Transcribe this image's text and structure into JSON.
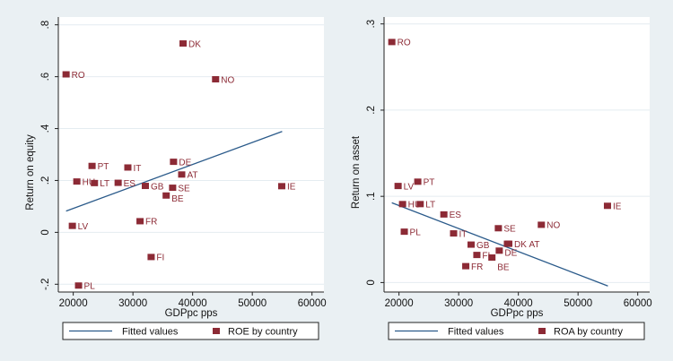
{
  "colors": {
    "background": "#eaf0f3",
    "plot": "#ffffff",
    "grid": "#e4ecf1",
    "marker": "#8c2a35",
    "fit": "#2a5a8a"
  },
  "chart_data": [
    {
      "type": "scatter",
      "xlabel": "GDPpc pps",
      "ylabel": "Return on equity",
      "xlim": [
        17500,
        62000
      ],
      "ylim": [
        -0.23,
        0.83
      ],
      "xticks": [
        20000,
        30000,
        40000,
        50000,
        60000
      ],
      "xtick_labels": [
        "20000",
        "30000",
        "40000",
        "50000",
        "60000"
      ],
      "yticks": [
        -0.2,
        0,
        0.2,
        0.4,
        0.6,
        0.8
      ],
      "ytick_labels": [
        "-.2",
        "0",
        ".2",
        ".4",
        ".6",
        ".8"
      ],
      "grid": true,
      "legend_position": "bottom",
      "legend": [
        "Fitted values",
        "ROE by country"
      ],
      "fit": {
        "name": "Fitted values",
        "x": [
          18800,
          55000
        ],
        "y": [
          0.082,
          0.389
        ]
      },
      "points": [
        {
          "label": "DK",
          "x": 38400,
          "y": 0.728
        },
        {
          "label": "RO",
          "x": 18800,
          "y": 0.609
        },
        {
          "label": "NO",
          "x": 43850,
          "y": 0.59
        },
        {
          "label": "PT",
          "x": 23150,
          "y": 0.256
        },
        {
          "label": "IT",
          "x": 29150,
          "y": 0.25
        },
        {
          "label": "DE",
          "x": 36800,
          "y": 0.272
        },
        {
          "label": "AT",
          "x": 38170,
          "y": 0.223
        },
        {
          "label": "HU",
          "x": 20600,
          "y": 0.196
        },
        {
          "label": "LT",
          "x": 23550,
          "y": 0.19
        },
        {
          "label": "ES",
          "x": 27520,
          "y": 0.191
        },
        {
          "label": "GB",
          "x": 32080,
          "y": 0.179
        },
        {
          "label": "SE",
          "x": 36650,
          "y": 0.172
        },
        {
          "label": "BE",
          "x": 35570,
          "y": 0.142
        },
        {
          "label": "IE",
          "x": 54930,
          "y": 0.178
        },
        {
          "label": "FR",
          "x": 31190,
          "y": 0.043
        },
        {
          "label": "LV",
          "x": 19850,
          "y": 0.025
        },
        {
          "label": "FI",
          "x": 33050,
          "y": -0.095
        },
        {
          "label": "PL",
          "x": 20890,
          "y": -0.205
        }
      ]
    },
    {
      "type": "scatter",
      "xlabel": "GDPpc pps",
      "ylabel": "Return on asset",
      "xlim": [
        17500,
        62000
      ],
      "ylim": [
        -0.011,
        0.308
      ],
      "xticks": [
        20000,
        30000,
        40000,
        50000,
        60000
      ],
      "xtick_labels": [
        "20000",
        "30000",
        "40000",
        "50000",
        "60000"
      ],
      "yticks": [
        0,
        0.1,
        0.2,
        0.3
      ],
      "ytick_labels": [
        "0",
        ".1",
        ".2",
        ".3"
      ],
      "grid": true,
      "legend_position": "bottom",
      "legend": [
        "Fitted values",
        "ROA by country"
      ],
      "fit": {
        "name": "Fitted values",
        "x": [
          18800,
          55000
        ],
        "y": [
          0.0925,
          -0.004
        ]
      },
      "points": [
        {
          "label": "RO",
          "x": 18800,
          "y": 0.279
        },
        {
          "label": "PT",
          "x": 23150,
          "y": 0.117
        },
        {
          "label": "LV",
          "x": 19850,
          "y": 0.112
        },
        {
          "label": "HU",
          "x": 20600,
          "y": 0.091
        },
        {
          "label": "LT",
          "x": 23550,
          "y": 0.091
        },
        {
          "label": "ES",
          "x": 27520,
          "y": 0.079
        },
        {
          "label": "IE",
          "x": 54930,
          "y": 0.089
        },
        {
          "label": "NO",
          "x": 43850,
          "y": 0.067
        },
        {
          "label": "SE",
          "x": 36650,
          "y": 0.063
        },
        {
          "label": "PL",
          "x": 20890,
          "y": 0.059
        },
        {
          "label": "IT",
          "x": 29150,
          "y": 0.057
        },
        {
          "label": "GB",
          "x": 32080,
          "y": 0.044
        },
        {
          "label": "AT",
          "x": 38170,
          "y": 0.045
        },
        {
          "label": "DK",
          "x": 38400,
          "y": 0.045
        },
        {
          "label": "DE",
          "x": 36800,
          "y": 0.037
        },
        {
          "label": "FI",
          "x": 33050,
          "y": 0.032
        },
        {
          "label": "BE",
          "x": 35570,
          "y": 0.029
        },
        {
          "label": "FR",
          "x": 31190,
          "y": 0.019
        }
      ]
    }
  ]
}
